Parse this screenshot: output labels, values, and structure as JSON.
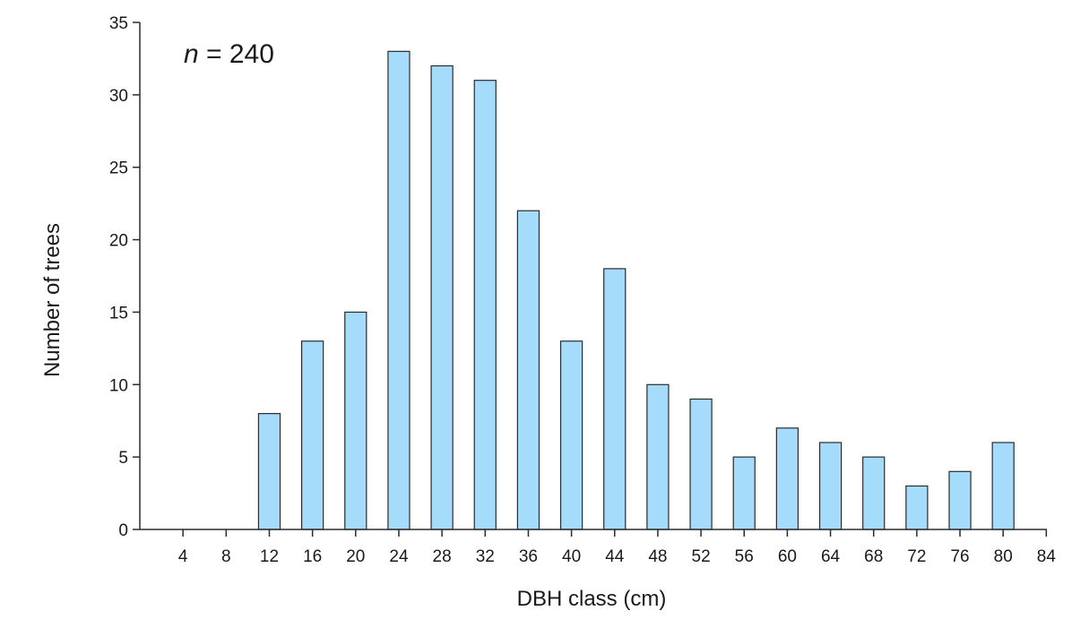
{
  "chart_data": {
    "type": "bar",
    "xlabel": "DBH class (cm)",
    "ylabel": "Number of trees",
    "annotation": {
      "var": "n",
      "rest": " = 240"
    },
    "ylim": [
      0,
      35
    ],
    "yticks": [
      0,
      5,
      10,
      15,
      20,
      25,
      30,
      35
    ],
    "xlim": [
      0,
      84
    ],
    "xticks": [
      4,
      8,
      12,
      16,
      20,
      24,
      28,
      32,
      36,
      40,
      44,
      48,
      52,
      56,
      60,
      64,
      68,
      72,
      76,
      80,
      84
    ],
    "categories": [
      4,
      8,
      12,
      16,
      20,
      24,
      28,
      32,
      36,
      40,
      44,
      48,
      52,
      56,
      60,
      64,
      68,
      72,
      76,
      80
    ],
    "values": [
      0,
      0,
      8,
      13,
      15,
      33,
      32,
      31,
      22,
      13,
      18,
      10,
      9,
      5,
      7,
      6,
      5,
      3,
      4,
      6
    ],
    "bar_color": "#a6dcfb",
    "grid": false
  }
}
